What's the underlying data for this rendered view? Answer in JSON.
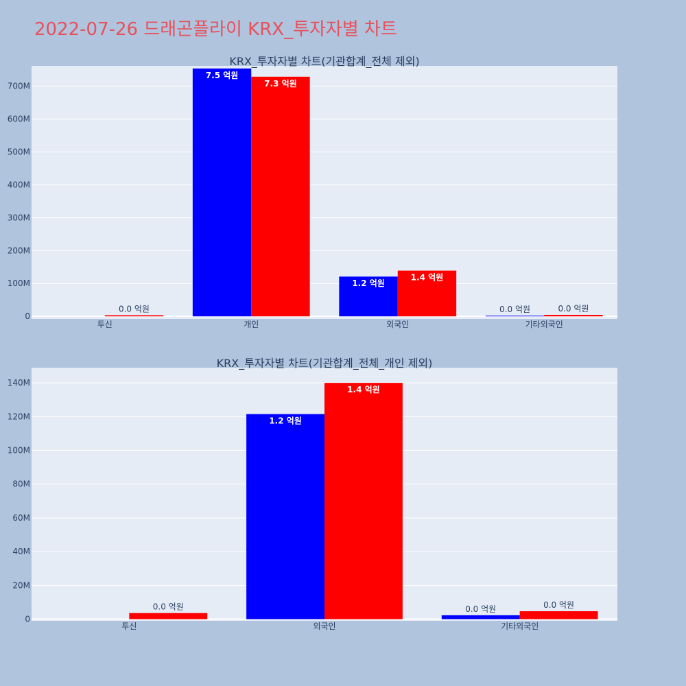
{
  "page_title": "2022-07-26 드래곤플라이 KRX_투자자별 차트",
  "colors": {
    "background": "#b0c4de",
    "title": "#e8505b",
    "plot_bg": "#e5ecf6",
    "series_a": "#0000ff",
    "series_b": "#ff0000"
  },
  "chart_data": [
    {
      "type": "bar",
      "title": "KRX_투자자별 차트(기관합계_전체 제외)",
      "categories": [
        "투신",
        "개인",
        "외국인",
        "기타외국인"
      ],
      "ytick_labels": [
        "0",
        "100M",
        "200M",
        "300M",
        "400M",
        "500M",
        "600M",
        "700M"
      ],
      "ytick_values": [
        0,
        100000000,
        200000000,
        300000000,
        400000000,
        500000000,
        600000000,
        700000000
      ],
      "ylim": [
        -8000000,
        762000000
      ],
      "series": [
        {
          "color": "#0000ff",
          "values": [
            0,
            754000000,
            121000000,
            2000000
          ],
          "labels": [
            "",
            "7.5 억원",
            "1.2 억원",
            "0.0 억원"
          ]
        },
        {
          "color": "#ff0000",
          "values": [
            3500000,
            729000000,
            139000000,
            4500000
          ],
          "labels": [
            "0.0 억원",
            "7.3 억원",
            "1.4 억원",
            "0.0 억원"
          ]
        }
      ]
    },
    {
      "type": "bar",
      "title": "KRX_투자자별 차트(기관합계_전체_개인 제외)",
      "categories": [
        "투신",
        "외국인",
        "기타외국인"
      ],
      "ytick_labels": [
        "0",
        "20M",
        "40M",
        "60M",
        "80M",
        "100M",
        "120M",
        "140M"
      ],
      "ytick_values": [
        0,
        20000000,
        40000000,
        60000000,
        80000000,
        100000000,
        120000000,
        140000000
      ],
      "ylim": [
        -1000000,
        149000000
      ],
      "series": [
        {
          "color": "#0000ff",
          "values": [
            0,
            121500000,
            2300000
          ],
          "labels": [
            "",
            "1.2 억원",
            "0.0 억원"
          ]
        },
        {
          "color": "#ff0000",
          "values": [
            3600000,
            140000000,
            4700000
          ],
          "labels": [
            "0.0 억원",
            "1.4 억원",
            "0.0 억원"
          ]
        }
      ]
    }
  ]
}
